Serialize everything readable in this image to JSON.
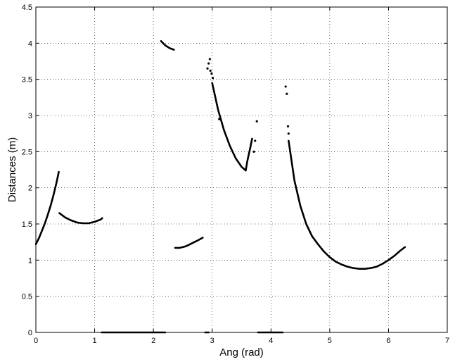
{
  "chart_data": {
    "type": "scatter",
    "title": "",
    "xlabel": "Ang (rad)",
    "ylabel": "Distances (m)",
    "xlim": [
      0,
      7
    ],
    "ylim": [
      0,
      4.5
    ],
    "xticks": [
      0,
      1,
      2,
      3,
      4,
      5,
      6,
      7
    ],
    "yticks": [
      0,
      0.5,
      1,
      1.5,
      2,
      2.5,
      3,
      3.5,
      4,
      4.5
    ],
    "xtick_labels": [
      "0",
      "1",
      "2",
      "3",
      "4",
      "5",
      "6",
      "7"
    ],
    "ytick_labels": [
      "0",
      "0.5",
      "1",
      "1.5",
      "2",
      "2.5",
      "3",
      "3.5",
      "4",
      "4.5"
    ],
    "grid": true,
    "marker_color": "#000000",
    "series": [
      {
        "x": [
          0.0,
          0.05,
          0.1,
          0.15,
          0.2,
          0.25,
          0.3,
          0.35,
          0.39
        ],
        "y": [
          1.22,
          1.3,
          1.4,
          1.5,
          1.62,
          1.75,
          1.9,
          2.07,
          2.22
        ]
      },
      {
        "x": [
          0.4,
          0.5,
          0.6,
          0.7,
          0.8,
          0.9,
          1.0,
          1.1,
          1.13
        ],
        "y": [
          1.65,
          1.59,
          1.55,
          1.52,
          1.51,
          1.51,
          1.53,
          1.56,
          1.58
        ]
      },
      {
        "x": [
          1.12,
          1.4,
          1.7,
          2.0,
          2.2
        ],
        "y": [
          0,
          0,
          0,
          0,
          0
        ]
      },
      {
        "x": [
          2.13,
          2.2,
          2.28,
          2.35
        ],
        "y": [
          4.03,
          3.97,
          3.93,
          3.91
        ]
      },
      {
        "x": [
          2.37,
          2.45,
          2.55,
          2.65,
          2.75,
          2.84
        ],
        "y": [
          1.17,
          1.17,
          1.19,
          1.23,
          1.27,
          1.31
        ]
      },
      {
        "x": [
          2.88,
          2.94
        ],
        "y": [
          0,
          0
        ]
      },
      {
        "x": [
          3.0,
          3.1,
          3.2,
          3.3,
          3.4,
          3.5,
          3.57
        ],
        "y": [
          3.45,
          3.08,
          2.8,
          2.58,
          2.41,
          2.29,
          2.24
        ]
      },
      {
        "x": [
          3.57,
          3.6,
          3.65,
          3.68
        ],
        "y": [
          2.24,
          2.38,
          2.56,
          2.68
        ]
      },
      {
        "x": [
          3.78,
          4.0,
          4.2
        ],
        "y": [
          0,
          0,
          0
        ]
      },
      {
        "x": [
          4.3,
          4.4,
          4.5,
          4.6,
          4.7,
          4.8,
          4.9,
          5.0,
          5.1,
          5.2,
          5.3,
          5.4,
          5.5,
          5.6,
          5.7,
          5.8,
          5.9,
          6.0,
          6.1,
          6.2,
          6.28
        ],
        "y": [
          2.65,
          2.1,
          1.75,
          1.5,
          1.33,
          1.22,
          1.12,
          1.04,
          0.98,
          0.94,
          0.91,
          0.89,
          0.88,
          0.88,
          0.89,
          0.91,
          0.95,
          1.0,
          1.06,
          1.13,
          1.18
        ]
      }
    ],
    "scatter_points": {
      "x": [
        2.92,
        2.94,
        2.96,
        2.97,
        2.99,
        3.01,
        3.12,
        3.73,
        3.76,
        3.71,
        4.25,
        4.27,
        4.29,
        4.3
      ],
      "y": [
        3.65,
        3.72,
        3.78,
        3.62,
        3.58,
        3.52,
        2.95,
        2.65,
        2.92,
        2.5,
        3.4,
        3.3,
        2.85,
        2.75
      ]
    }
  }
}
